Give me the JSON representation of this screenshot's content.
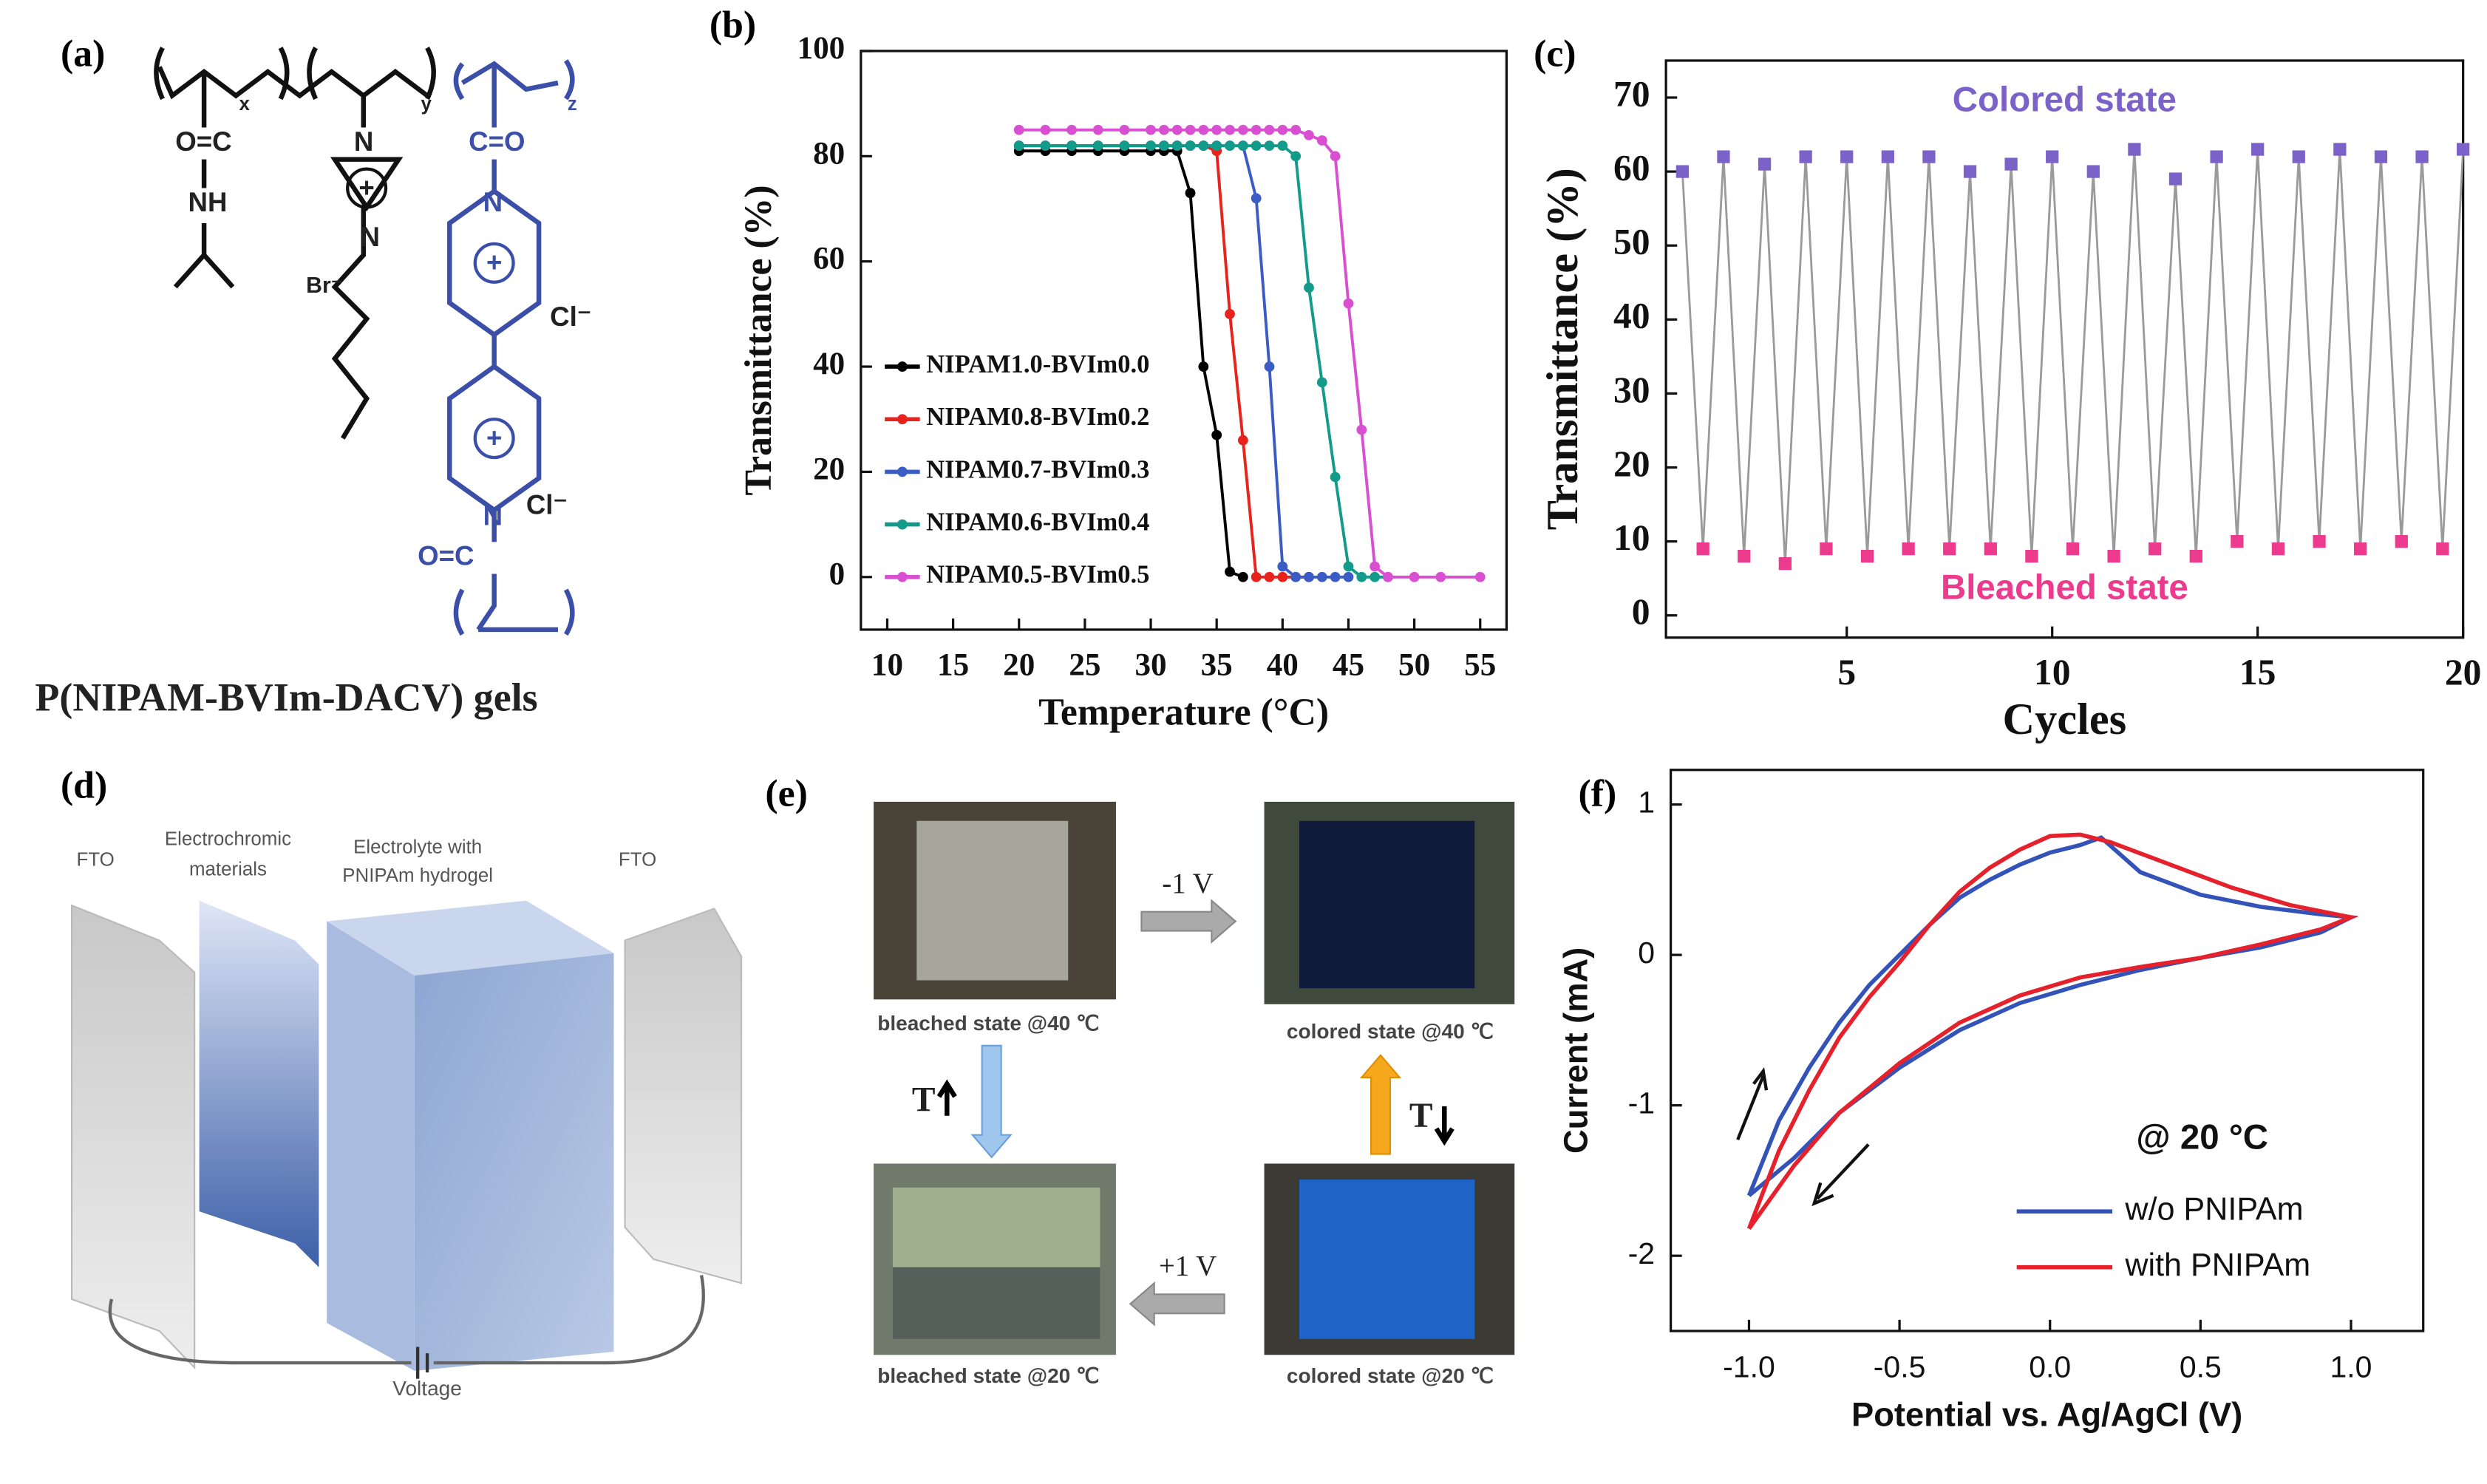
{
  "chart_data": [
    {
      "type": "line",
      "panel": "(b)",
      "xlabel": "Temperature (°C)",
      "ylabel": "Transmittance (%)",
      "x": [
        20,
        22,
        24,
        26,
        28,
        30,
        31,
        32,
        33,
        34,
        35,
        36,
        37,
        38,
        39,
        40,
        41,
        42,
        43,
        44,
        45,
        46,
        47,
        48,
        50,
        52,
        55
      ],
      "xlim": [
        8,
        57
      ],
      "xticks": [
        10,
        15,
        20,
        25,
        30,
        35,
        40,
        45,
        50,
        55
      ],
      "ylim": [
        -10,
        100
      ],
      "yticks": [
        0,
        20,
        40,
        60,
        80,
        100
      ],
      "markers": true,
      "legend": "lower left",
      "series": [
        {
          "name": "NIPAM1.0-BVIm0.0",
          "color": "#000000",
          "values": [
            81,
            81,
            81,
            81,
            81,
            81,
            81,
            81,
            73,
            40,
            27,
            1,
            0,
            null,
            null,
            null,
            null,
            null,
            null,
            null,
            null,
            null,
            null,
            null,
            null,
            null,
            null
          ]
        },
        {
          "name": "NIPAM0.8-BVIm0.2",
          "color": "#e8221c",
          "values": [
            82,
            82,
            82,
            82,
            82,
            82,
            82,
            82,
            82,
            82,
            81,
            50,
            26,
            0,
            0,
            0,
            0,
            0,
            null,
            null,
            null,
            null,
            null,
            null,
            null,
            null,
            null
          ]
        },
        {
          "name": "NIPAM0.7-BVIm0.3",
          "color": "#3b5cc4",
          "values": [
            82,
            82,
            82,
            82,
            82,
            82,
            82,
            82,
            82,
            82,
            82,
            82,
            82,
            72,
            40,
            2,
            0,
            0,
            0,
            0,
            0,
            null,
            null,
            null,
            null,
            null,
            null
          ]
        },
        {
          "name": "NIPAM0.6-BVIm0.4",
          "color": "#129a8a",
          "values": [
            82,
            82,
            82,
            82,
            82,
            82,
            82,
            82,
            82,
            82,
            82,
            82,
            82,
            82,
            82,
            82,
            80,
            55,
            37,
            19,
            2,
            0,
            0,
            0,
            null,
            null,
            null
          ]
        },
        {
          "name": "NIPAM0.5-BVIm0.5",
          "color": "#d94fd1",
          "values": [
            85,
            85,
            85,
            85,
            85,
            85,
            85,
            85,
            85,
            85,
            85,
            85,
            85,
            85,
            85,
            85,
            85,
            84,
            83,
            80,
            52,
            28,
            2,
            0,
            0,
            0,
            0
          ]
        }
      ]
    },
    {
      "type": "scatter",
      "panel": "(c)",
      "xlabel": "Cycles",
      "ylabel": "Transmittance (%)",
      "xlim": [
        0.6,
        20
      ],
      "xticks": [
        5,
        10,
        15,
        20
      ],
      "ylim": [
        -3,
        75
      ],
      "yticks": [
        0,
        10,
        20,
        30,
        40,
        50,
        60,
        70
      ],
      "line_color": "#9a9a9a",
      "series": [
        {
          "name": "Colored state",
          "color": "#7b62c8",
          "x": [
            1,
            2,
            3,
            4,
            5,
            6,
            7,
            8,
            9,
            10,
            11,
            12,
            13,
            14,
            15,
            16,
            17,
            18,
            19,
            20
          ],
          "values": [
            60,
            62,
            61,
            62,
            62,
            62,
            62,
            60,
            61,
            62,
            60,
            63,
            59,
            62,
            63,
            62,
            63,
            62,
            62,
            63
          ]
        },
        {
          "name": "Bleached state",
          "color": "#ec3a8c",
          "x": [
            1.5,
            2.5,
            3.5,
            4.5,
            5.5,
            6.5,
            7.5,
            8.5,
            9.5,
            10.5,
            11.5,
            12.5,
            13.5,
            14.5,
            15.5,
            16.5,
            17.5,
            18.5,
            19.5
          ],
          "values": [
            9,
            8,
            7,
            9,
            8,
            9,
            9,
            9,
            8,
            9,
            8,
            9,
            8,
            10,
            9,
            10,
            9,
            10,
            9
          ]
        }
      ]
    },
    {
      "type": "line",
      "panel": "(f)",
      "xlabel": "Potential vs. Ag/AgCl (V)",
      "ylabel": "Current (mA)",
      "annotation": "@ 20 °C",
      "xlim": [
        -1.26,
        1.24
      ],
      "xticks": [
        {
          "value": -1,
          "label": "-1.0"
        },
        {
          "value": -0.5,
          "label": "-0.5"
        },
        {
          "value": 0,
          "label": "0.0"
        },
        {
          "value": 0.5,
          "label": "0.5"
        },
        {
          "value": 1,
          "label": "1.0"
        }
      ],
      "ylim": [
        -2.5,
        1.23
      ],
      "yticks": [
        1,
        0,
        -1,
        -2
      ],
      "markers": false,
      "legend": "lower right",
      "series": [
        {
          "name": "w/o PNIPAm",
          "color": "#3353b8",
          "x": [
            -1,
            -0.9,
            -0.8,
            -0.7,
            -0.6,
            -0.5,
            -0.4,
            -0.3,
            -0.2,
            -0.1,
            0,
            0.1,
            0.17,
            0.3,
            0.5,
            0.7,
            0.9,
            1,
            0.9,
            0.7,
            0.5,
            0.3,
            0.1,
            -0.1,
            -0.3,
            -0.5,
            -0.7,
            -0.85,
            -1
          ],
          "values": [
            -1.6,
            -1.1,
            -0.75,
            -0.45,
            -0.2,
            0,
            0.2,
            0.38,
            0.5,
            0.6,
            0.68,
            0.73,
            0.78,
            0.55,
            0.4,
            0.32,
            0.27,
            0.25,
            0.15,
            0.05,
            -0.02,
            -0.1,
            -0.2,
            -0.32,
            -0.5,
            -0.75,
            -1.05,
            -1.35,
            -1.6
          ]
        },
        {
          "name": "with PNIPAm",
          "color": "#e5212b",
          "x": [
            -1,
            -0.9,
            -0.8,
            -0.7,
            -0.6,
            -0.5,
            -0.4,
            -0.3,
            -0.2,
            -0.1,
            0,
            0.1,
            0.2,
            0.4,
            0.6,
            0.8,
            1,
            0.9,
            0.7,
            0.5,
            0.3,
            0.1,
            -0.1,
            -0.3,
            -0.5,
            -0.7,
            -0.85,
            -1
          ],
          "values": [
            -1.82,
            -1.3,
            -0.9,
            -0.55,
            -0.28,
            -0.05,
            0.2,
            0.42,
            0.58,
            0.7,
            0.79,
            0.8,
            0.75,
            0.6,
            0.45,
            0.33,
            0.25,
            0.17,
            0.07,
            -0.02,
            -0.08,
            -0.15,
            -0.27,
            -0.45,
            -0.72,
            -1.05,
            -1.4,
            -1.82
          ]
        }
      ]
    }
  ],
  "structure": {
    "panel": "(a)",
    "caption": "P(NIPAM-BVIm-DACV) gels",
    "labels": [
      "x",
      "y",
      "z",
      "O=C",
      "NH",
      "N",
      "N",
      "Br⁻",
      "C=O",
      "N",
      "Cl⁻",
      "N",
      "Cl⁻",
      "O=C"
    ]
  },
  "device": {
    "panel": "(d)",
    "labels": [
      [
        "FTO"
      ],
      [
        "Electrochromic",
        "materials"
      ],
      [
        "Electrolyte with",
        "PNIPAm hydrogel"
      ],
      [
        "FTO"
      ]
    ],
    "voltage": "Voltage"
  },
  "photos": {
    "panel": "(e)",
    "captions": [
      "bleached state @40 ℃",
      "colored state @40 ℃",
      "bleached state @20 ℃",
      "colored state @20 ℃"
    ],
    "voltages": [
      "-1 V",
      "+1 V"
    ],
    "temperature": [
      "T",
      "T"
    ]
  }
}
